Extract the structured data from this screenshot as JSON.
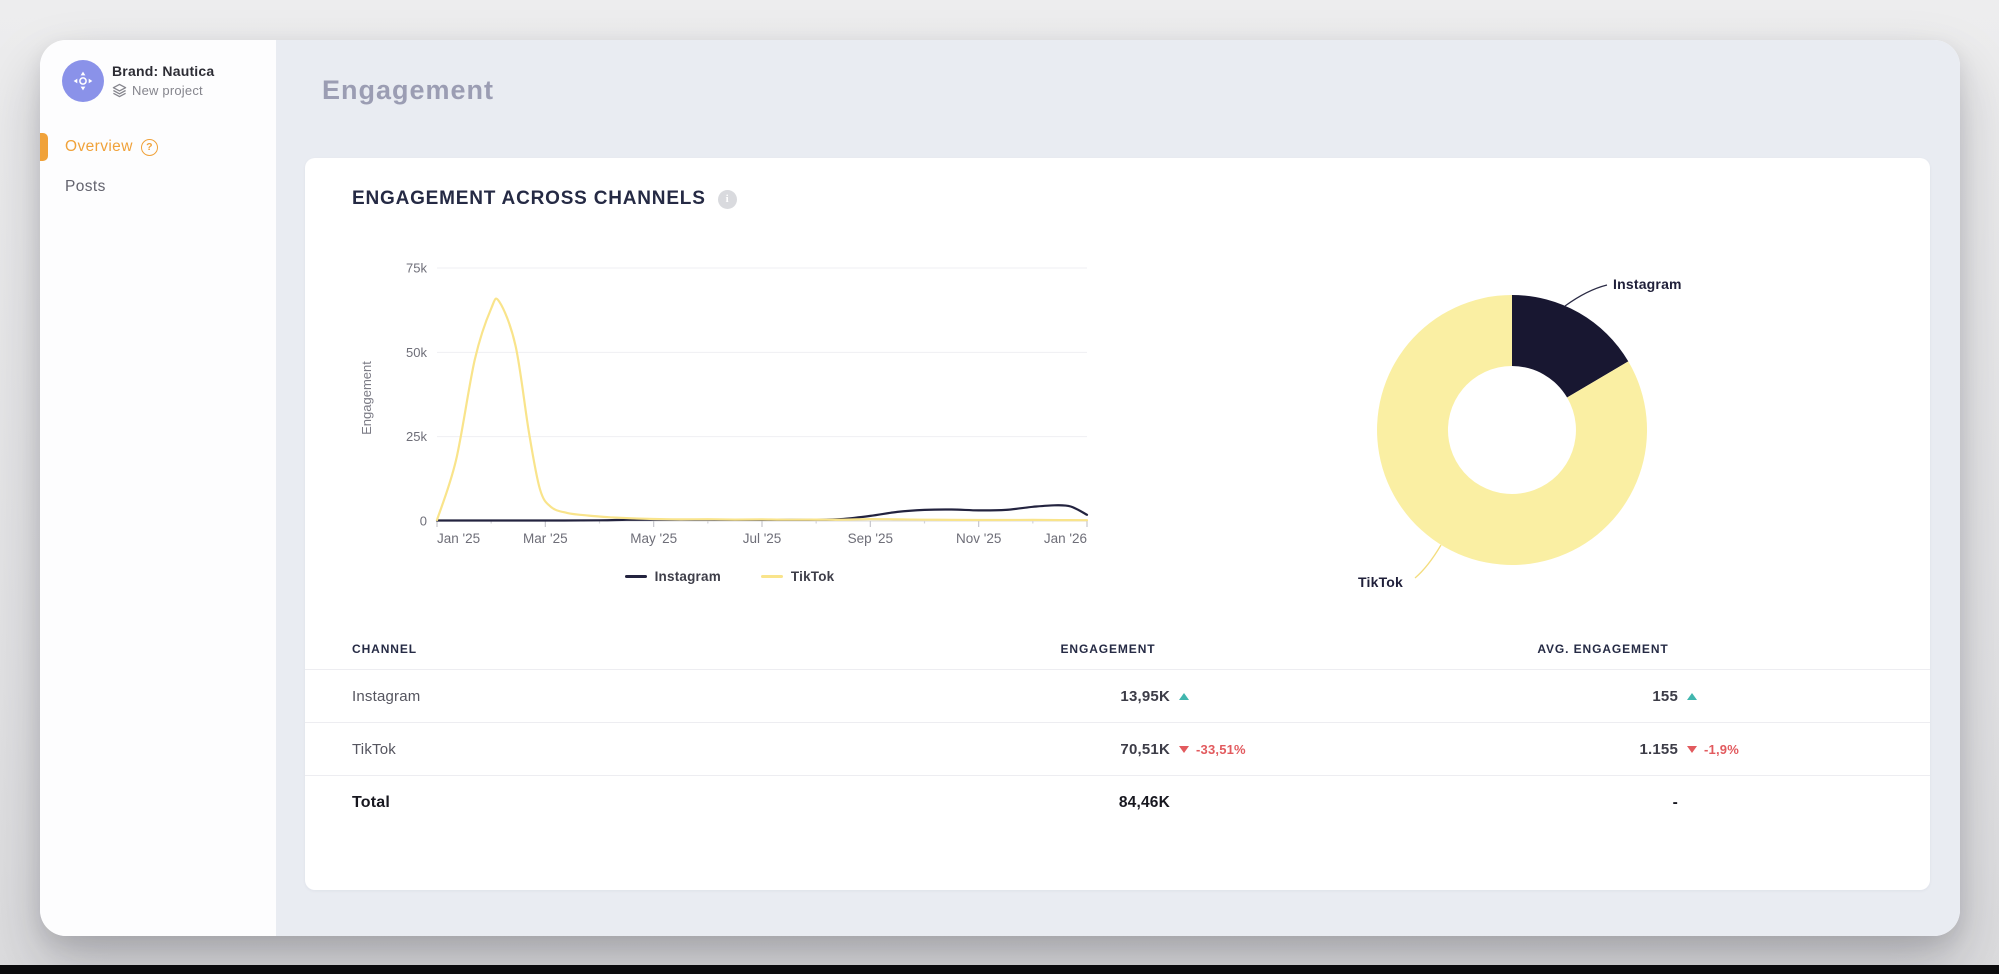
{
  "sidebar": {
    "brand_label": "Brand: Nautica",
    "project_label": "New project",
    "nav": [
      {
        "label": "Overview",
        "active": true,
        "has_help_icon": true
      },
      {
        "label": "Posts",
        "active": false,
        "has_help_icon": false
      }
    ]
  },
  "header": {
    "title": "Engagement"
  },
  "card": {
    "title": "ENGAGEMENT ACROSS CHANNELS"
  },
  "chart_data": [
    {
      "type": "line",
      "title": "Engagement across channels over time",
      "xlabel": "",
      "ylabel": "Engagement",
      "x_tick_labels": [
        "Jan '25",
        "Mar '25",
        "May '25",
        "Jul '25",
        "Sep '25",
        "Nov '25",
        "Jan '26"
      ],
      "x_months_total": 12,
      "y_tick_values": [
        0,
        25000,
        50000,
        75000
      ],
      "y_tick_labels": [
        "0",
        "25k",
        "50k",
        "75k"
      ],
      "ylim": [
        0,
        75000
      ],
      "grid": "horizontal",
      "legend_position": "bottom",
      "series": [
        {
          "name": "Instagram",
          "color": "#23233f",
          "points": [
            [
              0,
              150
            ],
            [
              1,
              160
            ],
            [
              2,
              150
            ],
            [
              3,
              200
            ],
            [
              3.5,
              350
            ],
            [
              4,
              400
            ],
            [
              5,
              380
            ],
            [
              6,
              360
            ],
            [
              7,
              380
            ],
            [
              7.5,
              600
            ],
            [
              8,
              1500
            ],
            [
              8.5,
              2700
            ],
            [
              9,
              3300
            ],
            [
              9.5,
              3400
            ],
            [
              10,
              3150
            ],
            [
              10.5,
              3300
            ],
            [
              11,
              4200
            ],
            [
              11.4,
              4650
            ],
            [
              11.7,
              4300
            ],
            [
              12,
              1850
            ]
          ]
        },
        {
          "name": "TikTok",
          "color": "#f9e48b",
          "points": [
            [
              0,
              300
            ],
            [
              0.35,
              18000
            ],
            [
              0.7,
              48000
            ],
            [
              1,
              63000
            ],
            [
              1.15,
              65000
            ],
            [
              1.45,
              52000
            ],
            [
              1.7,
              26000
            ],
            [
              1.9,
              9500
            ],
            [
              2.1,
              4200
            ],
            [
              2.4,
              2400
            ],
            [
              2.8,
              1600
            ],
            [
              3.2,
              1100
            ],
            [
              3.6,
              800
            ],
            [
              4,
              600
            ],
            [
              4.5,
              480
            ],
            [
              5,
              520
            ],
            [
              5.5,
              420
            ],
            [
              6,
              460
            ],
            [
              6.5,
              380
            ],
            [
              7,
              420
            ],
            [
              7.5,
              380
            ],
            [
              8,
              560
            ],
            [
              8.5,
              480
            ],
            [
              9,
              400
            ],
            [
              9.5,
              340
            ],
            [
              10,
              300
            ],
            [
              10.5,
              290
            ],
            [
              11,
              330
            ],
            [
              11.5,
              280
            ],
            [
              12,
              240
            ]
          ]
        }
      ]
    },
    {
      "type": "pie",
      "donut": true,
      "start_angle_deg": 0,
      "slices": [
        {
          "label": "Instagram",
          "value": 13950,
          "color": "#181731"
        },
        {
          "label": "TikTok",
          "value": 70510,
          "color": "#faefa3"
        }
      ]
    }
  ],
  "table": {
    "columns": [
      "CHANNEL",
      "ENGAGEMENT",
      "AVG. ENGAGEMENT"
    ],
    "rows": [
      {
        "channel": "Instagram",
        "engagement": {
          "value": "13,95K",
          "trend": "up",
          "change": null
        },
        "avg_engagement": {
          "value": "155",
          "trend": "up",
          "change": null
        }
      },
      {
        "channel": "TikTok",
        "engagement": {
          "value": "70,51K",
          "trend": "down",
          "change": "-33,51%"
        },
        "avg_engagement": {
          "value": "1.155",
          "trend": "down",
          "change": "-1,9%"
        }
      }
    ],
    "total_row": {
      "channel": "Total",
      "engagement": "84,46K",
      "avg_engagement": "-"
    }
  },
  "colors": {
    "accent_orange": "#f0a23a",
    "avatar_purple": "#8a92e9",
    "instagram_navy": "#23233f",
    "instagram_navy_donut": "#181731",
    "tiktok_yellow": "#f9e48b",
    "tiktok_yellow_donut": "#faefa3",
    "positive_teal": "#41b6ae",
    "negative_red": "#e25a5e",
    "main_background": "#e9ecf2",
    "page_title_gray": "#9b9db3"
  }
}
